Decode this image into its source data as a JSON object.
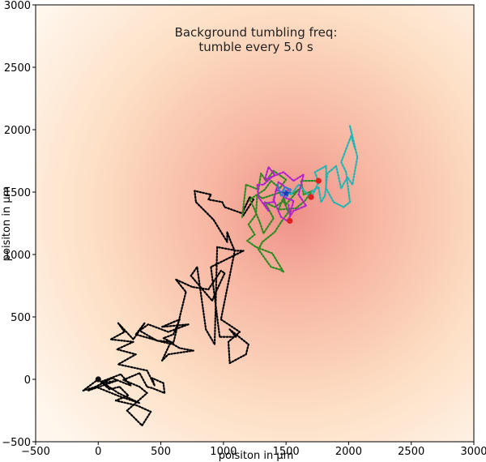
{
  "chart_data": {
    "type": "line",
    "title_lines": [
      "Background tumbling freq:",
      "tumble every 5.0 s"
    ],
    "xlabel": "poisiton in µm",
    "ylabel": "poisiton in µm",
    "xlim": [
      -500,
      3000
    ],
    "ylim": [
      -500,
      3000
    ],
    "xticks": [
      -500,
      0,
      500,
      1000,
      1500,
      2000,
      2500,
      3000
    ],
    "yticks": [
      -500,
      0,
      500,
      1000,
      1500,
      2000,
      2500,
      3000
    ],
    "grid": false,
    "background": {
      "type": "radial-gradient",
      "center": [
        1550,
        1350
      ],
      "colors": [
        "#ef8f87",
        "#f7b6a2",
        "#fde0c6",
        "#fff6ec",
        "#ffffff"
      ]
    },
    "series": [
      {
        "color": "#000000",
        "style": "dotted",
        "points": [
          [
            0,
            0
          ],
          [
            -120,
            -90
          ],
          [
            -20,
            -60
          ],
          [
            180,
            -140
          ],
          [
            330,
            -190
          ],
          [
            160,
            -110
          ],
          [
            40,
            -30
          ],
          [
            150,
            -10
          ],
          [
            -80,
            -90
          ],
          [
            110,
            10
          ],
          [
            260,
            -50
          ],
          [
            180,
            40
          ],
          [
            20,
            -20
          ],
          [
            90,
            -80
          ],
          [
            170,
            -60
          ],
          [
            240,
            -130
          ],
          [
            140,
            -170
          ],
          [
            310,
            -210
          ],
          [
            420,
            -260
          ],
          [
            350,
            -370
          ],
          [
            230,
            -250
          ],
          [
            390,
            -110
          ],
          [
            330,
            -60
          ],
          [
            200,
            -5
          ],
          [
            330,
            50
          ],
          [
            390,
            -60
          ],
          [
            430,
            -70
          ],
          [
            530,
            -110
          ],
          [
            520,
            -30
          ],
          [
            430,
            10
          ],
          [
            450,
            -50
          ],
          [
            390,
            70
          ],
          [
            160,
            120
          ],
          [
            300,
            200
          ],
          [
            150,
            240
          ],
          [
            280,
            300
          ],
          [
            100,
            320
          ],
          [
            210,
            380
          ],
          [
            160,
            450
          ],
          [
            280,
            320
          ],
          [
            370,
            450
          ],
          [
            300,
            360
          ],
          [
            510,
            300
          ],
          [
            600,
            280
          ],
          [
            650,
            250
          ],
          [
            760,
            230
          ],
          [
            560,
            200
          ],
          [
            510,
            150
          ],
          [
            580,
            300
          ],
          [
            470,
            310
          ],
          [
            330,
            390
          ],
          [
            400,
            440
          ],
          [
            560,
            380
          ],
          [
            720,
            440
          ],
          [
            510,
            420
          ],
          [
            650,
            480
          ],
          [
            600,
            360
          ],
          [
            520,
            330
          ],
          [
            600,
            290
          ],
          [
            700,
            700
          ],
          [
            620,
            800
          ],
          [
            750,
            740
          ],
          [
            880,
            720
          ],
          [
            980,
            870
          ],
          [
            1010,
            850
          ],
          [
            940,
            700
          ],
          [
            910,
            630
          ],
          [
            740,
            830
          ],
          [
            790,
            900
          ],
          [
            860,
            400
          ],
          [
            930,
            280
          ],
          [
            950,
            1060
          ],
          [
            1110,
            1030
          ],
          [
            1160,
            1030
          ],
          [
            900,
            900
          ],
          [
            970,
            340
          ],
          [
            1100,
            340
          ],
          [
            1050,
            400
          ],
          [
            1200,
            280
          ],
          [
            1180,
            200
          ],
          [
            1050,
            130
          ],
          [
            1040,
            300
          ],
          [
            1130,
            380
          ],
          [
            980,
            480
          ],
          [
            1090,
            1030
          ],
          [
            1060,
            1100
          ],
          [
            1030,
            1180
          ],
          [
            1030,
            1100
          ],
          [
            920,
            1280
          ],
          [
            780,
            1420
          ],
          [
            770,
            1510
          ],
          [
            900,
            1480
          ],
          [
            880,
            1440
          ],
          [
            990,
            1420
          ],
          [
            1010,
            1380
          ],
          [
            1150,
            1330
          ],
          [
            1210,
            1460
          ],
          [
            1240,
            1440
          ],
          [
            1150,
            1300
          ]
        ],
        "start_marker": true
      },
      {
        "color": "#2e8b23",
        "style": "dotted",
        "points": [
          [
            1150,
            1300
          ],
          [
            1180,
            1560
          ],
          [
            1280,
            1520
          ],
          [
            1300,
            1650
          ],
          [
            1340,
            1590
          ],
          [
            1400,
            1670
          ],
          [
            1500,
            1600
          ],
          [
            1450,
            1530
          ],
          [
            1380,
            1590
          ],
          [
            1330,
            1520
          ],
          [
            1210,
            1440
          ],
          [
            1240,
            1380
          ],
          [
            1290,
            1260
          ],
          [
            1320,
            1170
          ],
          [
            1400,
            1290
          ],
          [
            1330,
            1420
          ],
          [
            1410,
            1380
          ],
          [
            1480,
            1430
          ],
          [
            1520,
            1340
          ],
          [
            1460,
            1260
          ],
          [
            1410,
            1180
          ],
          [
            1310,
            1100
          ],
          [
            1280,
            1040
          ],
          [
            1380,
            900
          ],
          [
            1450,
            880
          ],
          [
            1480,
            860
          ],
          [
            1390,
            1010
          ],
          [
            1260,
            1060
          ],
          [
            1190,
            1110
          ],
          [
            1250,
            1160
          ],
          [
            1200,
            1240
          ],
          [
            1260,
            1320
          ],
          [
            1270,
            1480
          ],
          [
            1310,
            1450
          ],
          [
            1370,
            1470
          ],
          [
            1460,
            1500
          ],
          [
            1560,
            1490
          ],
          [
            1600,
            1520
          ],
          [
            1500,
            1400
          ],
          [
            1480,
            1460
          ],
          [
            1440,
            1360
          ],
          [
            1580,
            1370
          ],
          [
            1650,
            1430
          ],
          [
            1710,
            1510
          ],
          [
            1640,
            1480
          ],
          [
            1620,
            1590
          ],
          [
            1700,
            1590
          ],
          [
            1760,
            1590
          ]
        ],
        "end_marker": true
      },
      {
        "color": "#1fb5b5",
        "style": "dotted",
        "points": [
          [
            1480,
            1520
          ],
          [
            1540,
            1480
          ],
          [
            1600,
            1560
          ],
          [
            1700,
            1450
          ],
          [
            1760,
            1580
          ],
          [
            1730,
            1660
          ],
          [
            1820,
            1710
          ],
          [
            1820,
            1530
          ],
          [
            1880,
            1420
          ],
          [
            1960,
            1380
          ],
          [
            2010,
            1420
          ],
          [
            1980,
            1660
          ],
          [
            1940,
            1740
          ],
          [
            2020,
            1950
          ],
          [
            2050,
            1850
          ],
          [
            2010,
            2030
          ],
          [
            2070,
            1780
          ],
          [
            2030,
            1560
          ],
          [
            1990,
            1620
          ],
          [
            1940,
            1530
          ],
          [
            1900,
            1710
          ],
          [
            1830,
            1650
          ],
          [
            1810,
            1470
          ],
          [
            1780,
            1420
          ],
          [
            1760,
            1540
          ],
          [
            1700,
            1500
          ]
        ],
        "end_marker": true
      },
      {
        "color": "#b221cc",
        "style": "dotted",
        "points": [
          [
            1500,
            1480
          ],
          [
            1420,
            1520
          ],
          [
            1400,
            1420
          ],
          [
            1320,
            1410
          ],
          [
            1360,
            1350
          ],
          [
            1280,
            1460
          ],
          [
            1270,
            1560
          ],
          [
            1320,
            1560
          ],
          [
            1410,
            1640
          ],
          [
            1360,
            1700
          ],
          [
            1330,
            1600
          ],
          [
            1480,
            1660
          ],
          [
            1560,
            1590
          ],
          [
            1640,
            1640
          ],
          [
            1600,
            1480
          ],
          [
            1660,
            1390
          ],
          [
            1560,
            1350
          ],
          [
            1510,
            1270
          ],
          [
            1460,
            1300
          ],
          [
            1400,
            1440
          ],
          [
            1440,
            1580
          ],
          [
            1520,
            1520
          ],
          [
            1480,
            1460
          ],
          [
            1560,
            1430
          ],
          [
            1530,
            1320
          ],
          [
            1520,
            1400
          ]
        ],
        "end_marker": true
      },
      {
        "color": "#2a7fd4",
        "style": "dotted",
        "points": [
          [
            1430,
            1560
          ],
          [
            1460,
            1470
          ],
          [
            1510,
            1500
          ],
          [
            1500,
            1460
          ],
          [
            1540,
            1520
          ],
          [
            1490,
            1540
          ],
          [
            1470,
            1500
          ],
          [
            1500,
            1480
          ]
        ],
        "end_marker": false
      }
    ],
    "markers": [
      {
        "color": "#1a3ab8",
        "shape": "star",
        "x": 1500,
        "y": 1490
      },
      {
        "color": "#e02020",
        "shape": "circle",
        "x": 1760,
        "y": 1590
      },
      {
        "color": "#e02020",
        "shape": "circle",
        "x": 1700,
        "y": 1460
      },
      {
        "color": "#e02020",
        "shape": "circle",
        "x": 1530,
        "y": 1270
      },
      {
        "color": "#111111",
        "shape": "circle",
        "x": 0,
        "y": 0
      }
    ]
  }
}
